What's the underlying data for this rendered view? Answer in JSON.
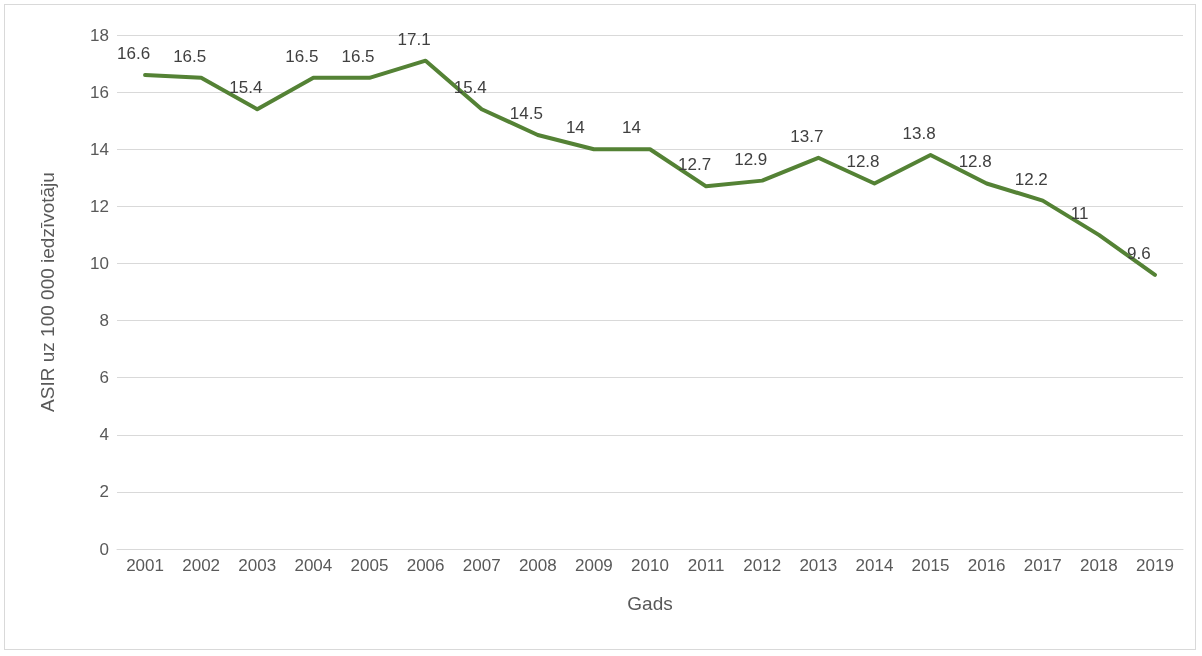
{
  "chart_data": {
    "type": "line",
    "xlabel": "Gads",
    "ylabel": "ASIR uz 100 000 iedzīvotāju",
    "categories": [
      "2001",
      "2002",
      "2003",
      "2004",
      "2005",
      "2006",
      "2007",
      "2008",
      "2009",
      "2010",
      "2011",
      "2012",
      "2013",
      "2014",
      "2015",
      "2016",
      "2017",
      "2018",
      "2019"
    ],
    "values": [
      16.6,
      16.5,
      15.4,
      16.5,
      16.5,
      17.1,
      15.4,
      14.5,
      14,
      14,
      12.7,
      12.9,
      13.7,
      12.8,
      13.8,
      12.8,
      12.2,
      11,
      9.6
    ],
    "color": "#548235",
    "ylim": [
      0,
      18
    ],
    "yticks": [
      0,
      2,
      4,
      6,
      8,
      10,
      12,
      14,
      16,
      18
    ],
    "grid": "y",
    "data_labels": true,
    "marker": "none"
  }
}
